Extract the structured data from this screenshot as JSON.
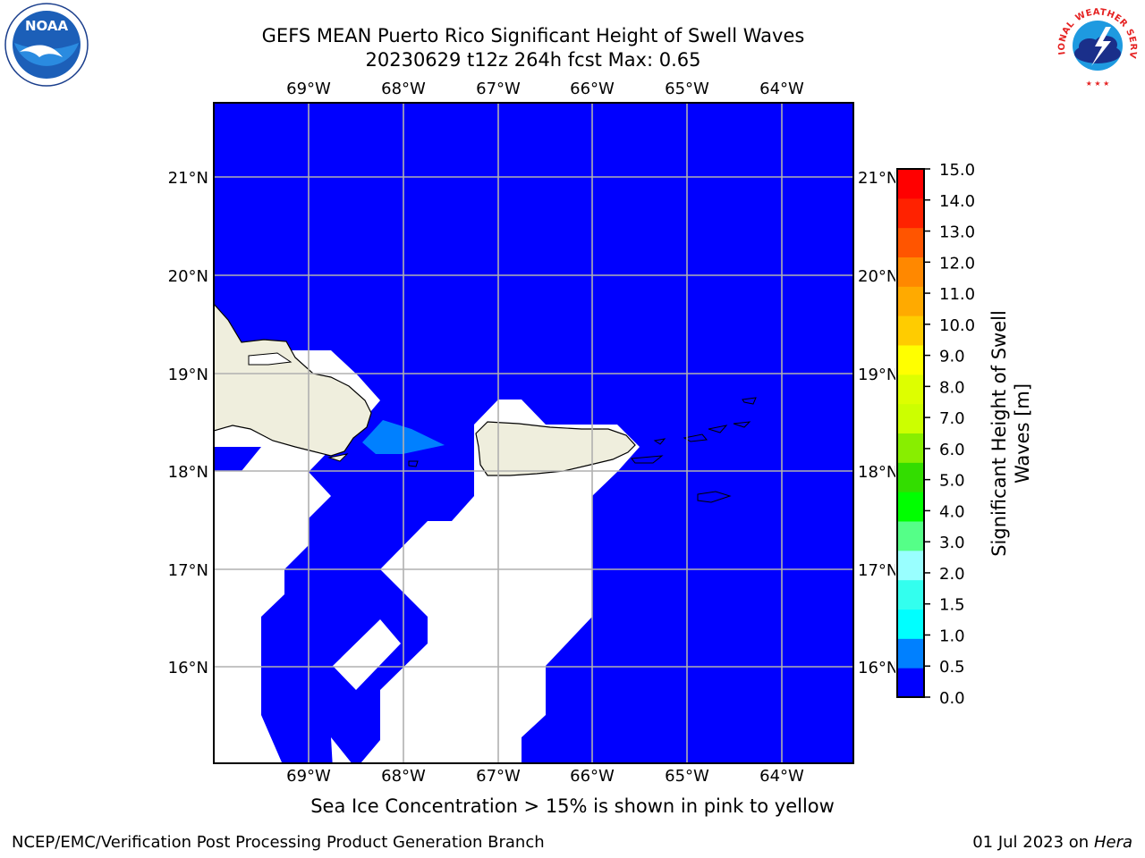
{
  "header": {
    "title_line1": "GEFS MEAN Puerto Rico Significant Height of Swell Waves",
    "title_line2": "20230629 t12z 264h fcst   Max: 0.65"
  },
  "map": {
    "lon_ticks": [
      "69°W",
      "68°W",
      "67°W",
      "66°W",
      "65°W",
      "64°W"
    ],
    "lat_ticks": [
      "21°N",
      "20°N",
      "19°N",
      "18°N",
      "17°N",
      "16°N"
    ],
    "land_color": "#efeedd",
    "ocean_color": "#0000ff",
    "missing_color": "#ffffff",
    "swell_patch_color": "#0080ff"
  },
  "colorbar": {
    "label_line1": "Significant Height of Swell",
    "label_line2": "Waves [m]",
    "tick_labels": [
      "0.0",
      "0.5",
      "1.0",
      "1.5",
      "2.0",
      "3.0",
      "4.0",
      "5.0",
      "6.0",
      "7.0",
      "8.0",
      "9.0",
      "10.0",
      "11.0",
      "12.0",
      "13.0",
      "14.0",
      "15.0"
    ],
    "colors": [
      "#0000ff",
      "#0080ff",
      "#00ffff",
      "#33ffee",
      "#99ffff",
      "#55ff88",
      "#00ff00",
      "#33dd00",
      "#88ee00",
      "#ccff00",
      "#ddff00",
      "#ffff00",
      "#ffcc00",
      "#ffaa00",
      "#ff8800",
      "#ff5500",
      "#ff2200",
      "#ff0000"
    ]
  },
  "caption": "Sea Ice Concentration > 15% is shown in pink to yellow",
  "footer": {
    "left": "NCEP/EMC/Verification Post Processing Product Generation Branch",
    "right_date": "01 Jul 2023 on ",
    "right_host": "Hera"
  },
  "logos": {
    "noaa_text": "NOAA",
    "nws_text": "NATIONAL WEATHER SERVICE"
  }
}
